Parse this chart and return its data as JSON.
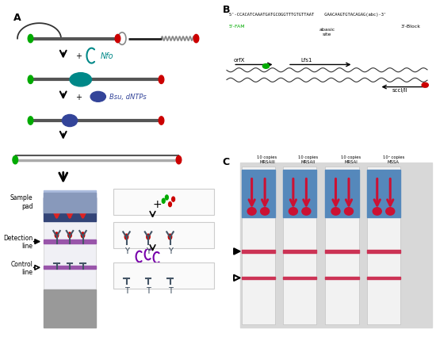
{
  "panel_A_label": "A",
  "panel_B_label": "B",
  "panel_C_label": "C",
  "bg_color": "#ffffff",
  "fig_width": 5.5,
  "fig_height": 4.31,
  "dpi": 100,
  "probe_seq": "5'-CCACATCAAATGATGCOGGTTTGTGTTAAT    GAACAAGTGTACAGAG(abc)-3'",
  "fam_label": "5'-FAM",
  "block_label": "3'-Block",
  "abasic_label": "abasic\nsite",
  "gene_labels": [
    "orfX",
    "Lfs1",
    "sccl/II"
  ],
  "strip_labels": [
    "10 copies\nMRSAIII",
    "10 copies\nMRSAII",
    "10 copies\nMRSAI",
    "10⁴ copies\nMSSA"
  ],
  "sample_pad_label": "Sample\npad",
  "detection_line_label": "Detection\nline",
  "control_line_label": "Control\nline",
  "nfo_text": "Nfo",
  "bsu_text": "Bsu, dNTPs",
  "colors": {
    "green": "#00aa00",
    "teal": "#008888",
    "red": "#cc0000",
    "purple": "#7700aa",
    "blue_dark": "#333399",
    "gray_med": "#888888",
    "purple_line": "#9955aa",
    "white": "#ffffff",
    "black": "#000000",
    "arrow_red": "#dd2222",
    "nfo_color": "#008888",
    "bsu_color": "#334499"
  }
}
